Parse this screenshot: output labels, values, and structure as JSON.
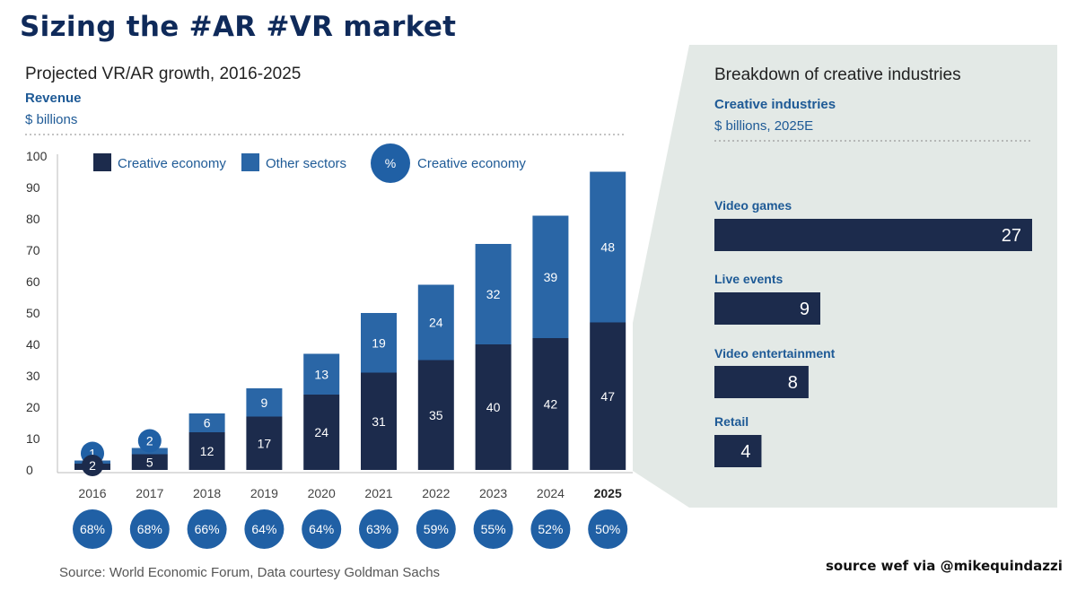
{
  "header": {
    "title": "Sizing the #AR #VR market"
  },
  "left_chart": {
    "title": "Projected VR/AR growth, 2016-2025",
    "subtitle_bold": "Revenue",
    "subtitle_units": "$ billions"
  },
  "right_panel": {
    "title": "Breakdown of creative industries",
    "subtitle_bold": "Creative industries",
    "subtitle_units": "$ billions, 2025E"
  },
  "footer": {
    "source": "Source: World Economic Forum, Data courtesy Goldman Sachs",
    "credit": "source wef via @mikequindazzi"
  },
  "colors": {
    "creative": "#1c2b4c",
    "other": "#2a66a6",
    "circle": "#2060a5",
    "panel_bg": "#e3e9e6"
  },
  "chart_data": [
    {
      "type": "bar",
      "stacked": true,
      "categories": [
        "2016",
        "2017",
        "2018",
        "2019",
        "2020",
        "2021",
        "2022",
        "2023",
        "2024",
        "2025"
      ],
      "highlight_category": "2025",
      "series": [
        {
          "name": "Creative economy",
          "values": [
            2,
            5,
            12,
            17,
            24,
            31,
            35,
            40,
            42,
            47
          ]
        },
        {
          "name": "Other sectors",
          "values": [
            1,
            2,
            6,
            9,
            13,
            19,
            24,
            32,
            39,
            48
          ]
        }
      ],
      "share_label": "Creative economy",
      "share_symbol": "%",
      "share_percent": [
        "68%",
        "68%",
        "66%",
        "64%",
        "64%",
        "63%",
        "59%",
        "55%",
        "52%",
        "50%"
      ],
      "yticks": [
        0,
        10,
        20,
        30,
        40,
        50,
        60,
        70,
        80,
        90,
        100
      ],
      "ylim": [
        0,
        100
      ],
      "xlabel": "",
      "ylabel": "Revenue ($ billions)",
      "legend": "top-left"
    },
    {
      "type": "bar",
      "orientation": "horizontal",
      "title": "Breakdown of creative industries",
      "categories": [
        "Video games",
        "Live events",
        "Video entertainment",
        "Retail"
      ],
      "values": [
        27,
        9,
        8,
        4
      ],
      "max": 27
    }
  ]
}
